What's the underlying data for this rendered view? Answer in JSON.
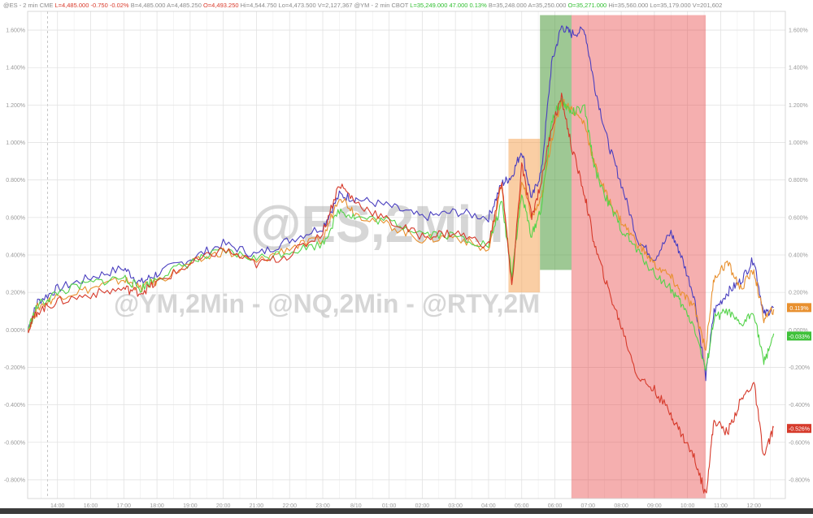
{
  "header": {
    "items": [
      {
        "text": "@ES - 2 min  CME",
        "color": "#8a8a8a"
      },
      {
        "text": "L=4,485.000",
        "color": "#d93a2b"
      },
      {
        "text": "-0.750",
        "color": "#d93a2b"
      },
      {
        "text": "-0.02%",
        "color": "#d93a2b"
      },
      {
        "text": "B=4,485.000",
        "color": "#8a8a8a"
      },
      {
        "text": "A=4,485.250",
        "color": "#8a8a8a"
      },
      {
        "text": "O=4,493.250",
        "color": "#d93a2b"
      },
      {
        "text": "Hi=4,544.750",
        "color": "#8a8a8a"
      },
      {
        "text": "Lo=4,473.500",
        "color": "#8a8a8a"
      },
      {
        "text": "V=2,127,367",
        "color": "#8a8a8a"
      },
      {
        "text": "@YM - 2 min  CBOT",
        "color": "#8a8a8a"
      },
      {
        "text": "L=35,249.000",
        "color": "#2fbf2f"
      },
      {
        "text": "47.000",
        "color": "#2fbf2f"
      },
      {
        "text": "0.13%",
        "color": "#2fbf2f"
      },
      {
        "text": "B=35,248.000",
        "color": "#8a8a8a"
      },
      {
        "text": "A=35,250.000",
        "color": "#8a8a8a"
      },
      {
        "text": "O=35,271.000",
        "color": "#2fbf2f"
      },
      {
        "text": "Hi=35,560.000",
        "color": "#8a8a8a"
      },
      {
        "text": "Lo=35,179.000",
        "color": "#8a8a8a"
      },
      {
        "text": "V=201,602",
        "color": "#8a8a8a"
      }
    ]
  },
  "watermark": {
    "main": "@ES,2Min",
    "sub": "@YM,2Min - @NQ,2Min - @RTY,2M"
  },
  "chart_data": {
    "type": "line",
    "x_labels": [
      "14:00",
      "16:00",
      "17:00",
      "18:00",
      "19:00",
      "20:00",
      "21:00",
      "22:00",
      "23:00",
      "8/10",
      "01:00",
      "02:00",
      "03:00",
      "04:00",
      "05:00",
      "06:00",
      "07:00",
      "08:00",
      "09:00",
      "10:00",
      "11:00",
      "12:00"
    ],
    "ylim": [
      -0.9,
      1.7
    ],
    "y_ticks": [
      {
        "value": 1.6,
        "left": "1.600%",
        "right": "1.600%"
      },
      {
        "value": 1.4,
        "left": "1.400%",
        "right": "1.400%"
      },
      {
        "value": 1.2,
        "left": "1.200%",
        "right": "1.200%"
      },
      {
        "value": 1.0,
        "left": "1.000%",
        "right": "1.000%"
      },
      {
        "value": 0.8,
        "left": "0.800%",
        "right": "0.800%"
      },
      {
        "value": 0.6,
        "left": "0.600%",
        "right": "0.600%"
      },
      {
        "value": 0.4,
        "left": "0.400%",
        "right": "0.400%"
      },
      {
        "value": 0.2,
        "left": "0.200%",
        "right": "0.200%"
      },
      {
        "value": 0.0,
        "left": "0.000%",
        "right": "0.000%"
      },
      {
        "value": -0.2,
        "left": "-0.200%",
        "right": "-0.200%"
      },
      {
        "value": -0.4,
        "left": "-0.400%",
        "right": "-0.400%"
      },
      {
        "value": -0.6,
        "left": "-0.600%",
        "right": "-0.600%"
      },
      {
        "value": -0.8,
        "left": "-0.800%",
        "right": "-0.800%"
      }
    ],
    "grid": true,
    "highlights": [
      {
        "color": "#f5a55a",
        "opacity": 0.55,
        "x_from": 13.6,
        "x_to": 14.55,
        "y_from": 0.2,
        "y_to": 1.02
      },
      {
        "color": "#4f9a3c",
        "opacity": 0.55,
        "x_from": 14.55,
        "x_to": 15.5,
        "y_from": 0.32,
        "y_to": 1.68
      },
      {
        "color": "#e84040",
        "opacity": 0.42,
        "x_from": 15.5,
        "x_to": 19.55,
        "y_from": -0.9,
        "y_to": 1.68
      }
    ],
    "series": [
      {
        "color": "#4a3fbf",
        "points": [
          [
            -0.9,
            0.0
          ],
          [
            -0.6,
            0.15
          ],
          [
            0.0,
            0.22
          ],
          [
            1.0,
            0.28
          ],
          [
            2.0,
            0.33
          ],
          [
            2.5,
            0.25
          ],
          [
            3.0,
            0.3
          ],
          [
            4.0,
            0.38
          ],
          [
            5.0,
            0.46
          ],
          [
            6.0,
            0.4
          ],
          [
            7.0,
            0.48
          ],
          [
            8.0,
            0.55
          ],
          [
            8.5,
            0.72
          ],
          [
            9.0,
            0.7
          ],
          [
            10.0,
            0.66
          ],
          [
            11.0,
            0.6
          ],
          [
            12.0,
            0.63
          ],
          [
            13.0,
            0.6
          ],
          [
            13.4,
            0.78
          ],
          [
            13.7,
            0.82
          ],
          [
            14.0,
            0.96
          ],
          [
            14.3,
            0.7
          ],
          [
            14.6,
            0.85
          ],
          [
            14.9,
            1.42
          ],
          [
            15.2,
            1.62
          ],
          [
            15.5,
            1.58
          ],
          [
            15.9,
            1.6
          ],
          [
            16.2,
            1.3
          ],
          [
            16.6,
            1.0
          ],
          [
            17.0,
            0.78
          ],
          [
            17.5,
            0.48
          ],
          [
            18.0,
            0.38
          ],
          [
            18.5,
            0.52
          ],
          [
            18.8,
            0.4
          ],
          [
            19.2,
            0.18
          ],
          [
            19.55,
            -0.25
          ],
          [
            19.8,
            0.1
          ],
          [
            20.2,
            0.2
          ],
          [
            20.6,
            0.26
          ],
          [
            21.0,
            0.38
          ],
          [
            21.3,
            0.08
          ],
          [
            21.6,
            0.12
          ]
        ]
      },
      {
        "color": "#e8902f",
        "points": [
          [
            -0.9,
            0.0
          ],
          [
            -0.6,
            0.12
          ],
          [
            0.0,
            0.18
          ],
          [
            1.0,
            0.22
          ],
          [
            2.0,
            0.27
          ],
          [
            2.5,
            0.22
          ],
          [
            3.0,
            0.26
          ],
          [
            4.0,
            0.35
          ],
          [
            5.0,
            0.42
          ],
          [
            6.0,
            0.36
          ],
          [
            7.0,
            0.44
          ],
          [
            8.0,
            0.48
          ],
          [
            8.5,
            0.72
          ],
          [
            9.0,
            0.62
          ],
          [
            10.0,
            0.56
          ],
          [
            11.0,
            0.48
          ],
          [
            12.0,
            0.5
          ],
          [
            13.0,
            0.42
          ],
          [
            13.4,
            0.78
          ],
          [
            13.7,
            0.25
          ],
          [
            14.0,
            0.8
          ],
          [
            14.3,
            0.6
          ],
          [
            14.6,
            0.7
          ],
          [
            14.9,
            1.02
          ],
          [
            15.2,
            1.22
          ],
          [
            15.5,
            1.18
          ],
          [
            15.9,
            1.1
          ],
          [
            16.2,
            0.88
          ],
          [
            16.6,
            0.7
          ],
          [
            17.0,
            0.58
          ],
          [
            17.5,
            0.46
          ],
          [
            18.0,
            0.35
          ],
          [
            18.5,
            0.28
          ],
          [
            18.8,
            0.2
          ],
          [
            19.2,
            0.12
          ],
          [
            19.55,
            -0.1
          ],
          [
            19.8,
            0.28
          ],
          [
            20.2,
            0.36
          ],
          [
            20.6,
            0.22
          ],
          [
            21.0,
            0.32
          ],
          [
            21.3,
            0.06
          ],
          [
            21.6,
            0.11
          ]
        ]
      },
      {
        "color": "#54d34a",
        "points": [
          [
            -0.9,
            0.0
          ],
          [
            -0.6,
            0.13
          ],
          [
            0.0,
            0.2
          ],
          [
            1.0,
            0.25
          ],
          [
            2.0,
            0.28
          ],
          [
            2.5,
            0.22
          ],
          [
            3.0,
            0.28
          ],
          [
            4.0,
            0.36
          ],
          [
            5.0,
            0.42
          ],
          [
            6.0,
            0.38
          ],
          [
            7.0,
            0.42
          ],
          [
            8.0,
            0.46
          ],
          [
            8.5,
            0.64
          ],
          [
            9.0,
            0.6
          ],
          [
            10.0,
            0.58
          ],
          [
            11.0,
            0.52
          ],
          [
            12.0,
            0.5
          ],
          [
            13.0,
            0.45
          ],
          [
            13.4,
            0.68
          ],
          [
            13.7,
            0.3
          ],
          [
            14.0,
            0.72
          ],
          [
            14.3,
            0.5
          ],
          [
            14.6,
            0.66
          ],
          [
            14.9,
            1.12
          ],
          [
            15.2,
            1.22
          ],
          [
            15.5,
            1.16
          ],
          [
            15.9,
            1.18
          ],
          [
            16.2,
            0.86
          ],
          [
            16.6,
            0.68
          ],
          [
            17.0,
            0.54
          ],
          [
            17.5,
            0.42
          ],
          [
            18.0,
            0.3
          ],
          [
            18.5,
            0.22
          ],
          [
            18.8,
            0.14
          ],
          [
            19.2,
            0.02
          ],
          [
            19.55,
            -0.22
          ],
          [
            19.8,
            0.06
          ],
          [
            20.2,
            0.1
          ],
          [
            20.6,
            0.02
          ],
          [
            21.0,
            0.1
          ],
          [
            21.3,
            -0.18
          ],
          [
            21.6,
            -0.02
          ]
        ]
      },
      {
        "color": "#d63a2b",
        "points": [
          [
            -0.9,
            0.0
          ],
          [
            -0.6,
            0.1
          ],
          [
            0.0,
            0.15
          ],
          [
            1.0,
            0.19
          ],
          [
            2.0,
            0.22
          ],
          [
            2.5,
            0.2
          ],
          [
            3.0,
            0.25
          ],
          [
            4.0,
            0.35
          ],
          [
            5.0,
            0.43
          ],
          [
            6.0,
            0.35
          ],
          [
            7.0,
            0.4
          ],
          [
            8.0,
            0.52
          ],
          [
            8.5,
            0.78
          ],
          [
            9.0,
            0.68
          ],
          [
            10.0,
            0.58
          ],
          [
            11.0,
            0.5
          ],
          [
            12.0,
            0.52
          ],
          [
            13.0,
            0.45
          ],
          [
            13.4,
            0.8
          ],
          [
            13.7,
            0.22
          ],
          [
            14.0,
            0.88
          ],
          [
            14.3,
            0.6
          ],
          [
            14.6,
            0.8
          ],
          [
            14.9,
            1.08
          ],
          [
            15.2,
            1.24
          ],
          [
            15.5,
            0.98
          ],
          [
            15.9,
            0.72
          ],
          [
            16.2,
            0.45
          ],
          [
            16.6,
            0.22
          ],
          [
            17.0,
            0.02
          ],
          [
            17.5,
            -0.25
          ],
          [
            18.0,
            -0.32
          ],
          [
            18.5,
            -0.45
          ],
          [
            18.8,
            -0.55
          ],
          [
            19.2,
            -0.68
          ],
          [
            19.55,
            -0.88
          ],
          [
            19.8,
            -0.48
          ],
          [
            20.2,
            -0.55
          ],
          [
            20.6,
            -0.38
          ],
          [
            21.0,
            -0.28
          ],
          [
            21.3,
            -0.68
          ],
          [
            21.6,
            -0.52
          ]
        ]
      }
    ],
    "end_labels": [
      {
        "text": "0.119%",
        "value": 0.119,
        "color": "#e8902f"
      },
      {
        "text": "-0.033%",
        "value": -0.033,
        "color": "#3fc13a"
      },
      {
        "text": "-0.526%",
        "value": -0.526,
        "color": "#d63a2b"
      }
    ]
  }
}
